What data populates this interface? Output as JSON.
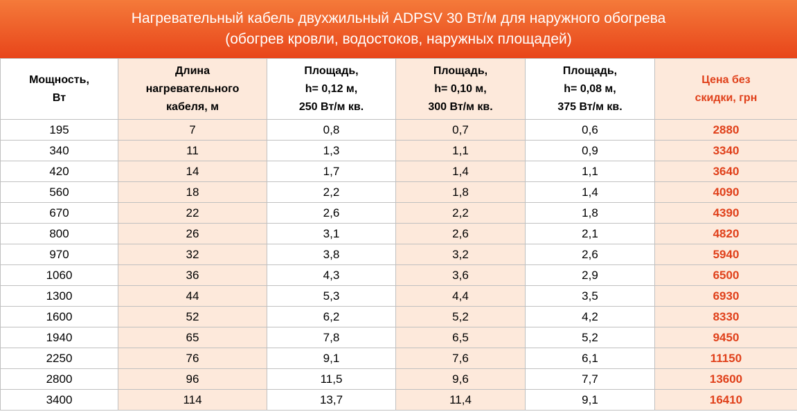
{
  "header": {
    "title": "Нагревательный кабель двухжильный ADPSV 30 Вт/м для наружного обогрева\n(обогрев кровли, водостоков, наружных площадей)"
  },
  "table": {
    "columns": [
      "Мощность,\nВт",
      "Длина\nнагревательного\nкабеля, м",
      "Площадь,\nh= 0,12 м,\n250 Вт/м кв.",
      "Площадь,\nh= 0,10 м,\n300 Вт/м кв.",
      "Площадь,\nh= 0,08 м,\n375 Вт/м кв.",
      "Цена без\nскидки, грн"
    ],
    "rows": [
      [
        "195",
        "7",
        "0,8",
        "0,7",
        "0,6",
        "2880"
      ],
      [
        "340",
        "11",
        "1,3",
        "1,1",
        "0,9",
        "3340"
      ],
      [
        "420",
        "14",
        "1,7",
        "1,4",
        "1,1",
        "3640"
      ],
      [
        "560",
        "18",
        "2,2",
        "1,8",
        "1,4",
        "4090"
      ],
      [
        "670",
        "22",
        "2,6",
        "2,2",
        "1,8",
        "4390"
      ],
      [
        "800",
        "26",
        "3,1",
        "2,6",
        "2,1",
        "4820"
      ],
      [
        "970",
        "32",
        "3,8",
        "3,2",
        "2,6",
        "5940"
      ],
      [
        "1060",
        "36",
        "4,3",
        "3,6",
        "2,9",
        "6500"
      ],
      [
        "1300",
        "44",
        "5,3",
        "4,4",
        "3,5",
        "6930"
      ],
      [
        "1600",
        "52",
        "6,2",
        "5,2",
        "4,2",
        "8330"
      ],
      [
        "1940",
        "65",
        "7,8",
        "6,5",
        "5,2",
        "9450"
      ],
      [
        "2250",
        "76",
        "9,1",
        "7,6",
        "6,1",
        "11150"
      ],
      [
        "2800",
        "96",
        "11,5",
        "9,6",
        "7,7",
        "13600"
      ],
      [
        "3400",
        "114",
        "13,7",
        "11,4",
        "9,1",
        "16410"
      ]
    ]
  }
}
